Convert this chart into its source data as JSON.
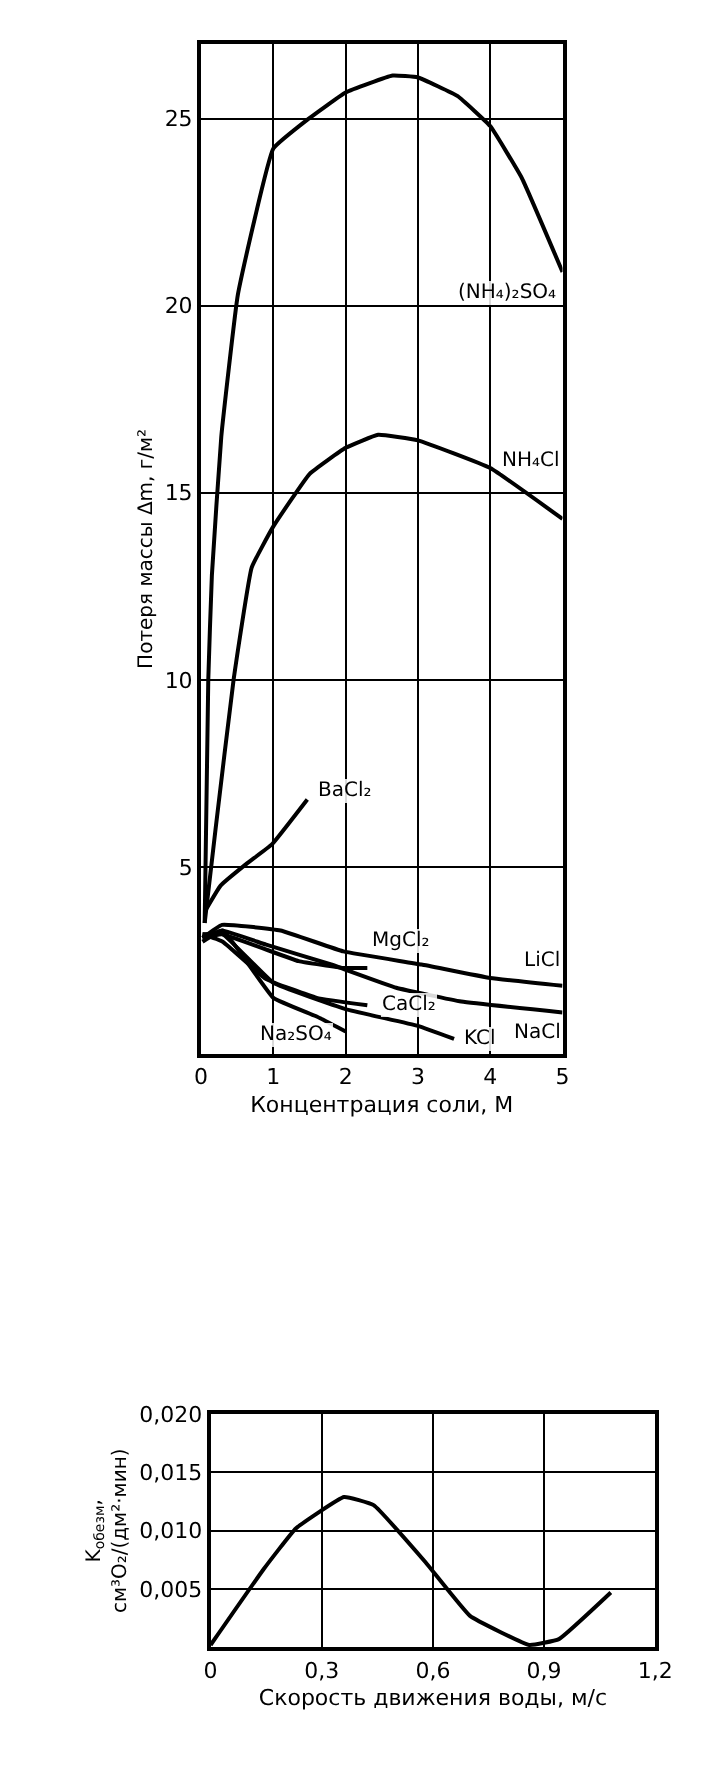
{
  "chart_data": [
    {
      "type": "line",
      "xlabel": "Концентрация соли, М",
      "ylabel": "Потеря массы Δm, г/м²",
      "xlim": [
        0,
        5
      ],
      "ylim": [
        0,
        27
      ],
      "xticks": [
        0,
        1,
        2,
        3,
        4,
        5
      ],
      "yticks": [
        5,
        10,
        15,
        20,
        25
      ],
      "grid": true,
      "marker": "none",
      "line_style": "solid",
      "series": [
        {
          "name": "(NH₄)₂SO₄",
          "color": "#000000",
          "x": [
            0.05,
            0.1,
            0.15,
            0.28,
            0.51,
            1.0,
            1.49,
            2.0,
            2.65,
            3.0,
            3.55,
            4.0,
            4.44,
            5.0
          ],
          "values": [
            3.5,
            10,
            12.8,
            16.5,
            20.3,
            24.2,
            25.0,
            25.7,
            26.15,
            26.1,
            25.6,
            24.8,
            23.4,
            20.9
          ]
        },
        {
          "name": "NH₄Cl",
          "color": "#000000",
          "x": [
            0.05,
            0.2,
            0.45,
            0.7,
            1.0,
            1.5,
            2.0,
            2.45,
            3.0,
            4.0,
            5.0
          ],
          "values": [
            3.5,
            6,
            10,
            13,
            14.1,
            15.5,
            16.2,
            16.55,
            16.4,
            15.66,
            14.3
          ]
        },
        {
          "name": "BaCl₂",
          "color": "#000000",
          "x": [
            0.05,
            0.27,
            0.64,
            0.98,
            1.47
          ],
          "values": [
            3.8,
            4.5,
            5.1,
            5.6,
            6.8
          ]
        },
        {
          "name": "LiCl",
          "color": "#000000",
          "x": [
            0.02,
            0.29,
            1.1,
            1.97,
            3.05,
            4.0,
            5.0
          ],
          "values": [
            3.1,
            3.45,
            3.3,
            2.74,
            2.39,
            2.03,
            1.82
          ]
        },
        {
          "name": "NaCl",
          "color": "#000000",
          "x": [
            0.02,
            0.29,
            0.9,
            1.8,
            2.7,
            3.6,
            5.0
          ],
          "values": [
            3.1,
            3.3,
            2.92,
            2.39,
            1.77,
            1.4,
            1.11
          ]
        },
        {
          "name": "MgCl₂",
          "color": "#000000",
          "x": [
            0.02,
            0.29,
            1.35,
            1.97,
            2.3
          ],
          "values": [
            3.1,
            3.2,
            2.48,
            2.3,
            2.3
          ]
        },
        {
          "name": "CaCl₂",
          "color": "#000000",
          "x": [
            0.02,
            0.3,
            0.9,
            1.6,
            2.3
          ],
          "values": [
            3.2,
            3.0,
            2.0,
            1.5,
            1.3
          ]
        },
        {
          "name": "KCl",
          "color": "#000000",
          "x": [
            0.02,
            0.3,
            1.0,
            2.0,
            3.0,
            3.5
          ],
          "values": [
            3.2,
            3.2,
            1.9,
            1.2,
            0.75,
            0.4
          ]
        },
        {
          "name": "Na₂SO₄",
          "color": "#000000",
          "x": [
            0.02,
            0.3,
            1.0,
            1.6,
            2.0
          ],
          "values": [
            3.0,
            3.3,
            1.5,
            1.0,
            0.6
          ]
        }
      ]
    },
    {
      "type": "line",
      "xlabel": "Скорость движения воды, м/с",
      "ylabel": "K$_{обезм}$,\nсм³O₂/(дм²·мин)",
      "xlim": [
        0,
        1.2
      ],
      "ylim": [
        0,
        0.02
      ],
      "xticks": [
        0,
        {
          "value": 0.3,
          "label": "0,3"
        },
        {
          "value": 0.6,
          "label": "0,6"
        },
        {
          "value": 0.9,
          "label": "0,9"
        },
        {
          "value": 1.2,
          "label": "1,2"
        }
      ],
      "yticks": [
        {
          "value": 0.005,
          "label": "0,005"
        },
        {
          "value": 0.01,
          "label": "0,010"
        },
        {
          "value": 0.015,
          "label": "0,015"
        },
        {
          "value": 0.02,
          "label": "0,020"
        }
      ],
      "grid": true,
      "marker": "none",
      "line_style": "solid",
      "series": [
        {
          "color": "#000000",
          "x": [
            0,
            0.143,
            0.23,
            0.36,
            0.44,
            0.58,
            0.7,
            0.86,
            0.94,
            1.08
          ],
          "values": [
            0.0002,
            0.0067,
            0.0102,
            0.0129,
            0.0122,
            0.0073,
            0.0027,
            0.0002,
            0.0007,
            0.0047
          ]
        }
      ]
    }
  ]
}
